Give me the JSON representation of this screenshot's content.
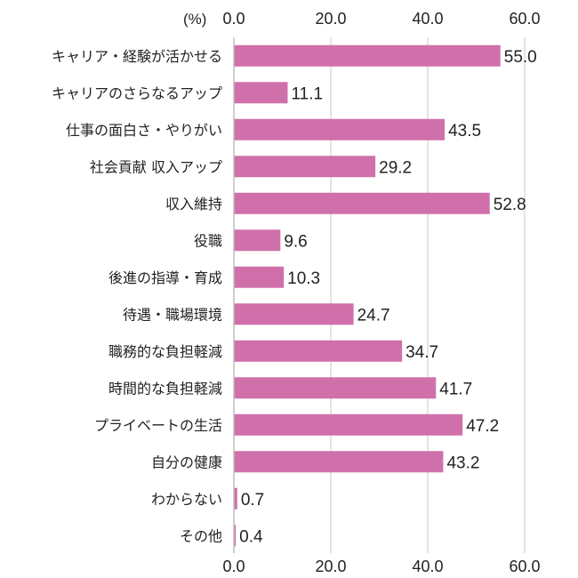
{
  "chart_data": {
    "type": "bar",
    "orientation": "horizontal",
    "unit_label": "(%)",
    "xlim": [
      0,
      60
    ],
    "ticks": [
      "0.0",
      "20.0",
      "40.0",
      "60.0"
    ],
    "grid": true,
    "bar_color": "#d070aa",
    "categories": [
      "キャリア・経験が活かせる",
      "キャリアのさらなるアップ",
      "仕事の面白さ・やりがい",
      "社会貢献 収入アップ",
      "収入維持",
      "役職",
      "後進の指導・育成",
      "待遇・職場環境",
      "職務的な負担軽減",
      "時間的な負担軽減",
      "プライベートの生活",
      "自分の健康",
      "わからない",
      "その他"
    ],
    "values": [
      55.0,
      11.1,
      43.5,
      29.2,
      52.8,
      9.6,
      10.3,
      24.7,
      34.7,
      41.7,
      47.2,
      43.2,
      0.7,
      0.4
    ],
    "value_labels": [
      "55.0",
      "11.1",
      "43.5",
      "29.2",
      "52.8",
      "9.6",
      "10.3",
      "24.7",
      "34.7",
      "41.7",
      "47.2",
      "43.2",
      "0.7",
      "0.4"
    ]
  }
}
